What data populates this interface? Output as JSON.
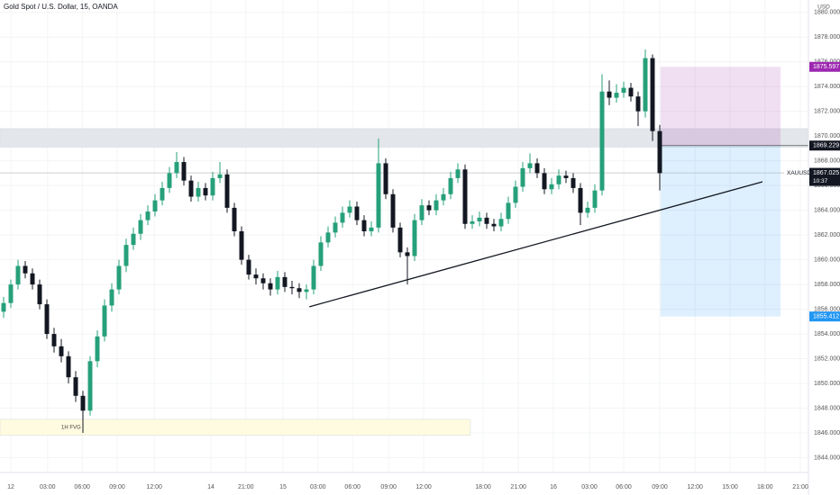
{
  "chart_data": {
    "type": "candlestick",
    "title": "Gold Spot / U.S. Dollar, 15, OANDA",
    "currency": "USD",
    "symbol": "XAUUSD",
    "countdown": "10:37",
    "last_price": 1867.025,
    "up_color": "#26a07a",
    "down_color": "#131722",
    "grid": true,
    "xlim": [
      -0.5,
      111.625
    ],
    "xticks": [
      {
        "value": 1.0,
        "label": "12"
      },
      {
        "value": 6.1,
        "label": "03:00"
      },
      {
        "value": 10.9,
        "label": "06:00"
      },
      {
        "value": 15.75,
        "label": "09:00"
      },
      {
        "value": 20.9,
        "label": "12:00"
      },
      {
        "value": 28.75,
        "label": "14"
      },
      {
        "value": 33.6,
        "label": "21:00"
      },
      {
        "value": 38.75,
        "label": "15"
      },
      {
        "value": 43.6,
        "label": "03:00"
      },
      {
        "value": 48.4,
        "label": "06:00"
      },
      {
        "value": 53.4,
        "label": "09:00"
      },
      {
        "value": 58.25,
        "label": "12:00"
      },
      {
        "value": 66.5,
        "label": "18:00"
      },
      {
        "value": 71.4,
        "label": "21:00"
      },
      {
        "value": 76.25,
        "label": "16"
      },
      {
        "value": 81.25,
        "label": "03:00"
      },
      {
        "value": 86,
        "label": "06:00"
      },
      {
        "value": 91,
        "label": "09:00"
      },
      {
        "value": 95.9,
        "label": "12:00"
      },
      {
        "value": 100.75,
        "label": "15:00"
      },
      {
        "value": 105.6,
        "label": "18:00"
      },
      {
        "value": 110.5,
        "label": "21:00"
      }
    ],
    "ylim": [
      1842.8,
      1881.0
    ],
    "yticks": [
      {
        "value": 1844,
        "label": "1844.000"
      },
      {
        "value": 1846,
        "label": "1846.000"
      },
      {
        "value": 1848,
        "label": "1848.000"
      },
      {
        "value": 1850,
        "label": "1850.000"
      },
      {
        "value": 1852,
        "label": "1852.000"
      },
      {
        "value": 1854,
        "label": "1854.000"
      },
      {
        "value": 1856,
        "label": "1856.000"
      },
      {
        "value": 1858,
        "label": "1858.000"
      },
      {
        "value": 1860,
        "label": "1860.000"
      },
      {
        "value": 1862,
        "label": "1862.000"
      },
      {
        "value": 1864,
        "label": "1864.000"
      },
      {
        "value": 1866,
        "label": "1866.000"
      },
      {
        "value": 1868,
        "label": "1868.000"
      },
      {
        "value": 1870,
        "label": "1870.000"
      },
      {
        "value": 1872,
        "label": "1872.000"
      },
      {
        "value": 1874,
        "label": "1874.000"
      },
      {
        "value": 1876,
        "label": "1876.000"
      },
      {
        "value": 1878,
        "label": "1878.000"
      },
      {
        "value": 1880,
        "label": "1880.000"
      }
    ],
    "zones": [
      {
        "x": [
          -0.5,
          111.625
        ],
        "y": [
          1869.1,
          1870.6
        ],
        "color": "#e3e6ea"
      },
      {
        "x": [
          -0.5,
          64.75
        ],
        "y": [
          1845.8,
          1847.1
        ],
        "color": "#fffbe0",
        "label": "1H FVG"
      }
    ],
    "trendline": {
      "x": [
        42.4,
        105.25
      ],
      "y": [
        1856.2,
        1866.3
      ]
    },
    "position": {
      "x": [
        91.1,
        107.75
      ],
      "entry": 1869.229,
      "target": 1875.597,
      "stop": 1855.412,
      "target_color": "#9c27b0",
      "stop_color": "#2196f3"
    },
    "candles": [
      [
        1855.8,
        1857.0,
        1855.3,
        1856.5
      ],
      [
        1856.5,
        1858.4,
        1856.1,
        1858.0
      ],
      [
        1858.0,
        1860.0,
        1857.6,
        1859.5
      ],
      [
        1859.5,
        1859.9,
        1858.5,
        1858.9
      ],
      [
        1858.9,
        1859.3,
        1857.6,
        1858.0
      ],
      [
        1858.0,
        1858.4,
        1856.0,
        1856.4
      ],
      [
        1856.4,
        1856.8,
        1853.6,
        1854.0
      ],
      [
        1854.0,
        1854.5,
        1852.5,
        1853.0
      ],
      [
        1853.0,
        1853.6,
        1851.7,
        1852.2
      ],
      [
        1852.2,
        1852.6,
        1850.0,
        1850.5
      ],
      [
        1850.5,
        1851.0,
        1848.5,
        1849.0
      ],
      [
        1849.0,
        1849.4,
        1846.0,
        1847.8
      ],
      [
        1847.8,
        1852.2,
        1847.4,
        1851.8
      ],
      [
        1851.8,
        1854.3,
        1851.3,
        1853.8
      ],
      [
        1853.8,
        1856.8,
        1853.4,
        1856.3
      ],
      [
        1856.3,
        1858.1,
        1855.8,
        1857.6
      ],
      [
        1857.6,
        1860.0,
        1857.2,
        1859.5
      ],
      [
        1859.5,
        1861.7,
        1859.0,
        1861.2
      ],
      [
        1861.2,
        1862.6,
        1860.8,
        1862.1
      ],
      [
        1862.1,
        1863.7,
        1861.6,
        1863.2
      ],
      [
        1863.2,
        1864.4,
        1862.8,
        1863.9
      ],
      [
        1863.9,
        1865.3,
        1863.5,
        1864.8
      ],
      [
        1864.8,
        1866.3,
        1864.4,
        1865.8
      ],
      [
        1865.8,
        1867.5,
        1865.4,
        1867.0
      ],
      [
        1867.0,
        1868.7,
        1866.6,
        1867.9
      ],
      [
        1867.9,
        1868.3,
        1866.0,
        1866.4
      ],
      [
        1866.4,
        1866.8,
        1864.7,
        1865.1
      ],
      [
        1865.1,
        1866.3,
        1864.7,
        1865.8
      ],
      [
        1865.8,
        1866.2,
        1864.8,
        1865.2
      ],
      [
        1865.2,
        1867.1,
        1864.8,
        1866.6
      ],
      [
        1866.6,
        1867.9,
        1866.2,
        1866.9
      ],
      [
        1866.9,
        1867.3,
        1863.8,
        1864.2
      ],
      [
        1864.2,
        1864.6,
        1861.9,
        1862.3
      ],
      [
        1862.3,
        1862.7,
        1859.6,
        1860.0
      ],
      [
        1860.0,
        1860.4,
        1858.4,
        1858.8
      ],
      [
        1858.8,
        1859.3,
        1858.0,
        1858.5
      ],
      [
        1858.5,
        1858.9,
        1857.6,
        1858.1
      ],
      [
        1858.1,
        1858.5,
        1857.1,
        1857.6
      ],
      [
        1857.6,
        1859.1,
        1857.2,
        1858.6
      ],
      [
        1858.6,
        1859.0,
        1857.4,
        1857.8
      ],
      [
        1857.8,
        1858.3,
        1857.2,
        1857.7
      ],
      [
        1857.7,
        1858.1,
        1856.9,
        1857.4
      ],
      [
        1857.4,
        1858.0,
        1856.8,
        1857.6
      ],
      [
        1857.6,
        1860.0,
        1857.2,
        1859.5
      ],
      [
        1859.5,
        1861.9,
        1859.1,
        1861.4
      ],
      [
        1861.4,
        1862.7,
        1861.0,
        1862.2
      ],
      [
        1862.2,
        1863.5,
        1861.8,
        1863.0
      ],
      [
        1863.0,
        1864.3,
        1862.6,
        1863.8
      ],
      [
        1863.8,
        1864.8,
        1863.4,
        1864.3
      ],
      [
        1864.3,
        1864.7,
        1862.8,
        1863.2
      ],
      [
        1863.2,
        1863.6,
        1861.9,
        1862.3
      ],
      [
        1862.3,
        1863.1,
        1861.9,
        1862.6
      ],
      [
        1862.6,
        1869.8,
        1862.2,
        1867.8
      ],
      [
        1867.8,
        1868.2,
        1864.9,
        1865.3
      ],
      [
        1865.3,
        1865.7,
        1862.2,
        1862.6
      ],
      [
        1862.6,
        1863.0,
        1860.2,
        1860.6
      ],
      [
        1860.6,
        1861.0,
        1858.0,
        1860.3
      ],
      [
        1860.3,
        1863.7,
        1859.9,
        1863.2
      ],
      [
        1863.2,
        1864.9,
        1862.8,
        1864.4
      ],
      [
        1864.4,
        1864.8,
        1863.6,
        1864.0
      ],
      [
        1864.0,
        1865.3,
        1863.6,
        1864.8
      ],
      [
        1864.8,
        1865.8,
        1864.4,
        1865.3
      ],
      [
        1865.3,
        1867.1,
        1864.9,
        1866.6
      ],
      [
        1866.6,
        1867.8,
        1866.2,
        1867.3
      ],
      [
        1867.3,
        1867.7,
        1862.5,
        1862.9
      ],
      [
        1862.9,
        1863.6,
        1862.5,
        1863.1
      ],
      [
        1863.1,
        1863.9,
        1862.7,
        1863.4
      ],
      [
        1863.4,
        1863.8,
        1862.5,
        1862.9
      ],
      [
        1862.9,
        1863.3,
        1862.3,
        1862.7
      ],
      [
        1862.7,
        1863.8,
        1862.3,
        1863.3
      ],
      [
        1863.3,
        1865.1,
        1862.9,
        1864.6
      ],
      [
        1864.6,
        1866.4,
        1864.2,
        1865.9
      ],
      [
        1865.9,
        1867.9,
        1865.5,
        1867.4
      ],
      [
        1867.4,
        1868.6,
        1867.0,
        1867.8
      ],
      [
        1867.8,
        1868.2,
        1866.6,
        1867.0
      ],
      [
        1867.0,
        1867.4,
        1865.3,
        1865.7
      ],
      [
        1865.7,
        1866.6,
        1865.3,
        1866.1
      ],
      [
        1866.1,
        1867.3,
        1865.7,
        1866.8
      ],
      [
        1866.8,
        1867.2,
        1866.2,
        1866.6
      ],
      [
        1866.6,
        1867.0,
        1865.4,
        1865.8
      ],
      [
        1865.8,
        1866.2,
        1862.8,
        1863.8
      ],
      [
        1863.8,
        1864.7,
        1863.4,
        1864.2
      ],
      [
        1864.2,
        1866.1,
        1863.8,
        1865.6
      ],
      [
        1865.6,
        1875.0,
        1865.2,
        1873.6
      ],
      [
        1873.6,
        1874.5,
        1872.5,
        1873.1
      ],
      [
        1873.1,
        1874.2,
        1872.7,
        1873.5
      ],
      [
        1873.5,
        1874.4,
        1873.1,
        1873.9
      ],
      [
        1873.9,
        1874.3,
        1872.8,
        1873.2
      ],
      [
        1873.2,
        1873.6,
        1870.8,
        1872.0
      ],
      [
        1872.0,
        1877.0,
        1871.5,
        1876.3
      ],
      [
        1876.3,
        1876.6,
        1869.6,
        1870.4
      ],
      [
        1870.4,
        1870.9,
        1865.6,
        1867.0
      ]
    ]
  }
}
